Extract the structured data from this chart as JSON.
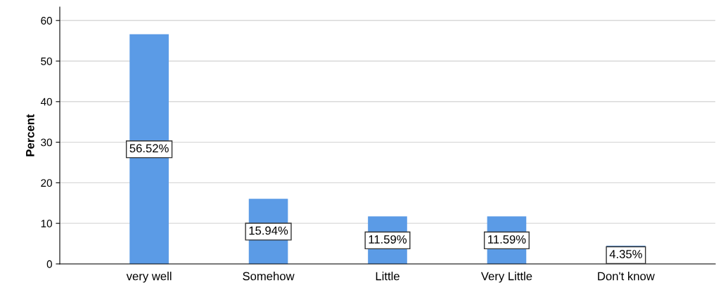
{
  "chart_data": {
    "type": "bar",
    "ylabel": "Percent",
    "categories": [
      "very well",
      "Somehow",
      "Little",
      "Very Little",
      "Don't know"
    ],
    "values": [
      56.52,
      15.94,
      11.59,
      11.59,
      4.35
    ],
    "value_labels": [
      "56.52%",
      "15.94%",
      "11.59%",
      "11.59%",
      "4.35%"
    ],
    "color": "#5b9be6",
    "ylim": [
      0,
      63.3
    ],
    "yticks": [
      0,
      10,
      20,
      30,
      40,
      50,
      60
    ],
    "grid": "y",
    "legend": false
  }
}
